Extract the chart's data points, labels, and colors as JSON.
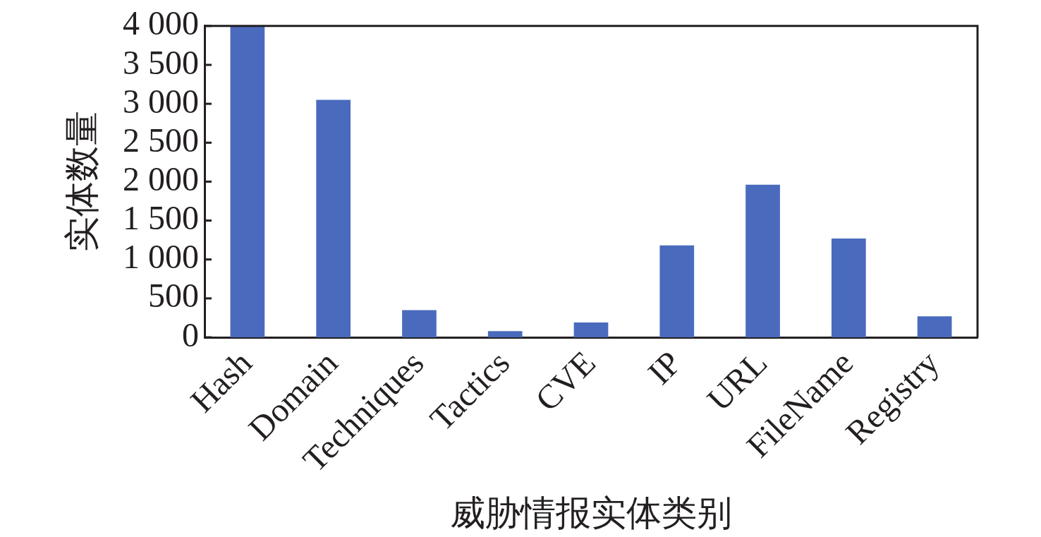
{
  "chart_data": {
    "type": "bar",
    "xlabel": "威胁情报实体类别",
    "ylabel": "实体数量",
    "categories": [
      "Hash",
      "Domain",
      "Techniques",
      "Tactics",
      "CVE",
      "IP",
      "URL",
      "FileName",
      "Registry"
    ],
    "values": [
      4000,
      3050,
      350,
      80,
      190,
      1180,
      1960,
      1270,
      270
    ],
    "color": "#4a6bbd",
    "ylim": [
      0,
      4000
    ],
    "yticks": [
      0,
      500,
      {
        "value": 1000,
        "label": "1 000"
      },
      {
        "value": 1500,
        "label": "1 500"
      },
      {
        "value": 2000,
        "label": "2 000"
      },
      {
        "value": 2500,
        "label": "2 500"
      },
      {
        "value": 3000,
        "label": "3 000"
      },
      {
        "value": 3500,
        "label": "3 500"
      },
      {
        "value": 4000,
        "label": "4 000"
      }
    ]
  }
}
